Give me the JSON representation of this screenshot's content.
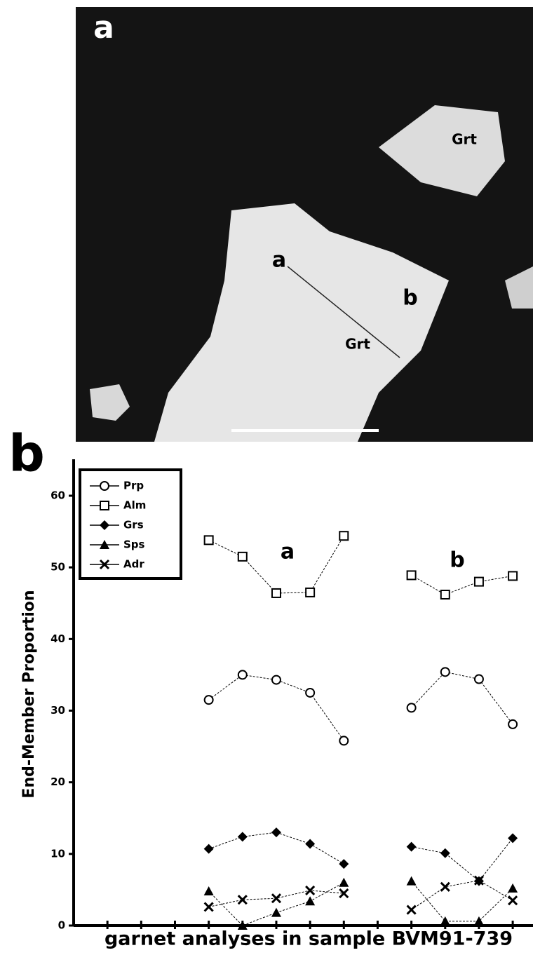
{
  "photo": {
    "panel_label": "a",
    "labels": [
      "Grt",
      "Grt",
      "a",
      "b"
    ]
  },
  "chart_data": {
    "type": "scatter",
    "panel_label": "b",
    "y_label": "End-Member Proportion",
    "x_label": "garnet analyses in sample BVM91-739",
    "annotations": [
      "a",
      "b"
    ],
    "x": [
      4,
      5,
      6,
      7,
      8,
      9,
      10,
      11,
      12,
      13
    ],
    "xlim": [
      0,
      13.6
    ],
    "xticks": [
      1,
      2,
      3,
      4,
      5,
      6,
      7,
      8,
      9,
      10,
      11,
      12,
      13
    ],
    "ylim": [
      0,
      60
    ],
    "yticks": [
      0,
      10,
      20,
      30,
      40,
      50,
      60
    ],
    "series": [
      {
        "name": "Prp",
        "color": "#000000",
        "marker": "circle",
        "values": [
          31.5,
          35,
          34.3,
          32.5,
          25.8,
          null,
          30.4,
          35.4,
          34.4,
          28.1
        ]
      },
      {
        "name": "Alm",
        "color": "#000000",
        "marker": "square",
        "values": [
          53.8,
          51.5,
          46.4,
          46.5,
          54.4,
          null,
          48.9,
          46.2,
          48.0,
          48.8
        ]
      },
      {
        "name": "Grs",
        "color": "#000000",
        "marker": "diamond",
        "values": [
          10.7,
          12.4,
          13,
          11.4,
          8.6,
          null,
          11,
          10.1,
          6.2,
          12.2
        ]
      },
      {
        "name": "Sps",
        "color": "#000000",
        "marker": "triangle",
        "values": [
          4.8,
          0,
          1.8,
          3.4,
          6,
          null,
          6.2,
          0.6,
          0.6,
          5.2
        ]
      },
      {
        "name": "Adr",
        "color": "#000000",
        "marker": "cross",
        "values": [
          2.6,
          3.6,
          3.8,
          4.9,
          4.5,
          null,
          2.2,
          5.4,
          6.3,
          3.5
        ]
      }
    ]
  }
}
